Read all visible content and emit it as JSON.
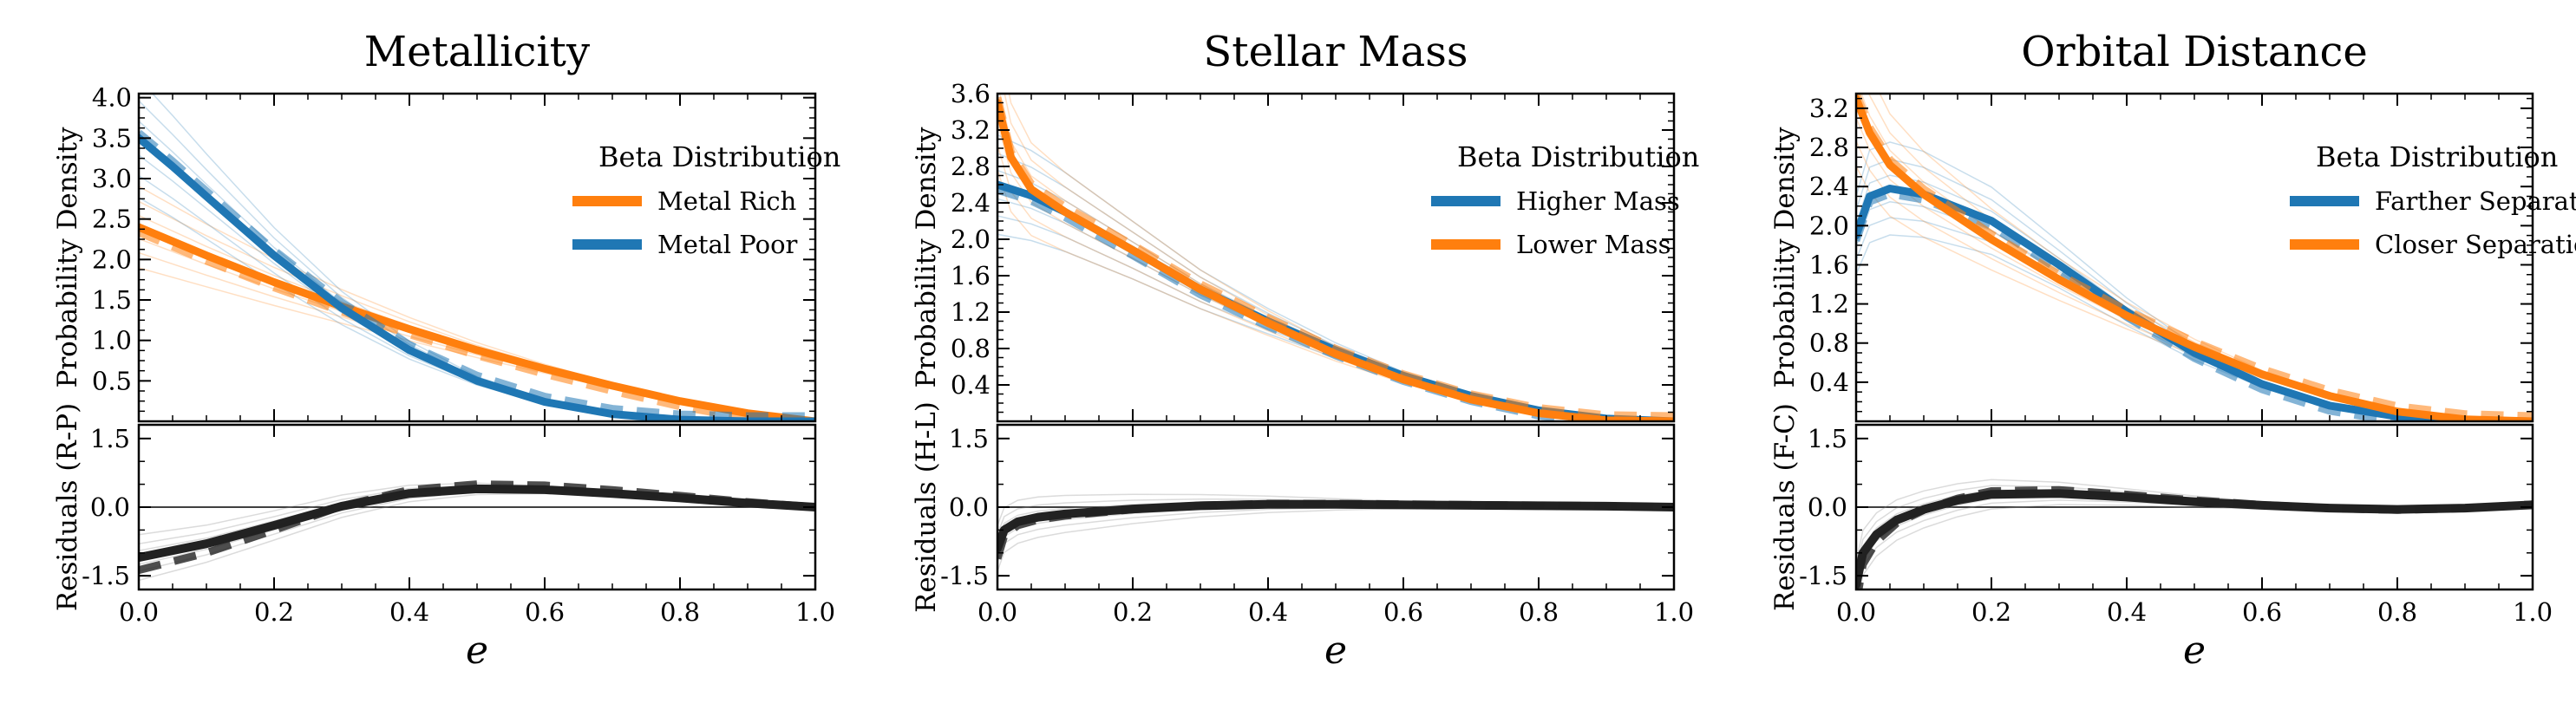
{
  "chart_data": [
    {
      "type": "line",
      "title": "Metallicity",
      "xlabel": "e",
      "top_panel": {
        "ylabel": "Probability Density",
        "ylim": [
          0,
          4.05
        ],
        "yticks": [
          0.5,
          1.0,
          1.5,
          2.0,
          2.5,
          3.0,
          3.5,
          4.0
        ],
        "ytick_labels": [
          "0.5",
          "1.0",
          "1.5",
          "2.0",
          "2.5",
          "3.0",
          "3.5",
          "4.0"
        ],
        "legend_title": "Beta Distribution",
        "legend_position": "top-right",
        "series": [
          {
            "name": "Metal Rich",
            "color": "#ff7f0e",
            "x": [
              0,
              0.1,
              0.2,
              0.3,
              0.4,
              0.5,
              0.6,
              0.7,
              0.8,
              0.9,
              1.0
            ],
            "y": [
              2.4,
              2.05,
              1.72,
              1.42,
              1.14,
              0.88,
              0.65,
              0.44,
              0.25,
              0.1,
              0.0
            ]
          },
          {
            "name": "Metal Poor",
            "color": "#1f77b4",
            "x": [
              0,
              0.05,
              0.1,
              0.2,
              0.3,
              0.4,
              0.5,
              0.6,
              0.7,
              0.8,
              0.9,
              1.0
            ],
            "y": [
              3.5,
              3.15,
              2.78,
              2.05,
              1.4,
              0.88,
              0.5,
              0.24,
              0.09,
              0.02,
              0.0,
              0.0
            ]
          }
        ]
      },
      "residual_panel": {
        "ylabel": "Residuals (R-P)",
        "ylim": [
          -1.8,
          1.8
        ],
        "yticks": [
          -1.5,
          0.0,
          1.5
        ],
        "ytick_labels": [
          "-1.5",
          "0.0",
          "1.5"
        ],
        "series": [
          {
            "name": "",
            "x": [
              0,
              0.05,
              0.1,
              0.2,
              0.3,
              0.4,
              0.5,
              0.6,
              0.7,
              0.8,
              0.9,
              1.0
            ],
            "y": [
              -1.1,
              -0.95,
              -0.8,
              -0.4,
              0.02,
              0.3,
              0.4,
              0.38,
              0.3,
              0.2,
              0.09,
              0.0
            ]
          }
        ]
      },
      "xlim": [
        0,
        1
      ],
      "xticks": [
        0.0,
        0.2,
        0.4,
        0.6,
        0.8,
        1.0
      ],
      "xtick_labels": [
        "0.0",
        "0.2",
        "0.4",
        "0.6",
        "0.8",
        "1.0"
      ]
    },
    {
      "type": "line",
      "title": "Stellar Mass",
      "xlabel": "e",
      "top_panel": {
        "ylabel": "Probability Density",
        "ylim": [
          0,
          3.6
        ],
        "yticks": [
          0.4,
          0.8,
          1.2,
          1.6,
          2.0,
          2.4,
          2.8,
          3.2,
          3.6
        ],
        "ytick_labels": [
          "0.4",
          "0.8",
          "1.2",
          "1.6",
          "2.0",
          "2.4",
          "2.8",
          "3.2",
          "3.6"
        ],
        "legend_title": "Beta Distribution",
        "legend_position": "top-right",
        "series": [
          {
            "name": "Higher Mass",
            "color": "#1f77b4",
            "x": [
              0,
              0.05,
              0.1,
              0.2,
              0.3,
              0.4,
              0.5,
              0.6,
              0.7,
              0.8,
              0.9,
              1.0
            ],
            "y": [
              2.6,
              2.48,
              2.3,
              1.88,
              1.45,
              1.1,
              0.78,
              0.5,
              0.28,
              0.12,
              0.03,
              0.0
            ]
          },
          {
            "name": "Lower Mass",
            "color": "#ff7f0e",
            "x": [
              0,
              0.02,
              0.05,
              0.1,
              0.2,
              0.3,
              0.4,
              0.5,
              0.6,
              0.7,
              0.8,
              0.9,
              1.0
            ],
            "y": [
              3.5,
              2.9,
              2.55,
              2.3,
              1.88,
              1.45,
              1.08,
              0.74,
              0.46,
              0.24,
              0.09,
              0.01,
              0.0
            ]
          }
        ]
      },
      "residual_panel": {
        "ylabel": "Residuals (H-L)",
        "ylim": [
          -1.8,
          1.8
        ],
        "yticks": [
          -1.5,
          0.0,
          1.5
        ],
        "ytick_labels": [
          "-1.5",
          "0.0",
          "1.5"
        ],
        "series": [
          {
            "name": "",
            "x": [
              0,
              0.01,
              0.03,
              0.06,
              0.1,
              0.2,
              0.3,
              0.4,
              0.5,
              0.6,
              0.7,
              0.8,
              0.9,
              1.0
            ],
            "y": [
              -0.9,
              -0.5,
              -0.32,
              -0.22,
              -0.15,
              -0.04,
              0.03,
              0.06,
              0.06,
              0.05,
              0.04,
              0.03,
              0.02,
              0.0
            ]
          }
        ]
      },
      "xlim": [
        0,
        1
      ],
      "xticks": [
        0.0,
        0.2,
        0.4,
        0.6,
        0.8,
        1.0
      ],
      "xtick_labels": [
        "0.0",
        "0.2",
        "0.4",
        "0.6",
        "0.8",
        "1.0"
      ]
    },
    {
      "type": "line",
      "title": "Orbital Distance",
      "xlabel": "e",
      "top_panel": {
        "ylabel": "Probability Density",
        "ylim": [
          0,
          3.35
        ],
        "yticks": [
          0.4,
          0.8,
          1.2,
          1.6,
          2.0,
          2.4,
          2.8,
          3.2
        ],
        "ytick_labels": [
          "0.4",
          "0.8",
          "1.2",
          "1.6",
          "2.0",
          "2.4",
          "2.8",
          "3.2"
        ],
        "legend_title": "Beta Distribution",
        "legend_position": "top-right",
        "series": [
          {
            "name": "Farther Separations",
            "color": "#1f77b4",
            "x": [
              0,
              0.02,
              0.05,
              0.1,
              0.2,
              0.3,
              0.4,
              0.5,
              0.6,
              0.7,
              0.8,
              0.9,
              1.0
            ],
            "y": [
              1.9,
              2.3,
              2.38,
              2.32,
              2.05,
              1.6,
              1.12,
              0.7,
              0.38,
              0.16,
              0.05,
              0.01,
              0.0
            ]
          },
          {
            "name": "Closer Separations",
            "color": "#ff7f0e",
            "x": [
              0,
              0.02,
              0.05,
              0.1,
              0.2,
              0.3,
              0.4,
              0.5,
              0.6,
              0.7,
              0.8,
              0.9,
              1.0
            ],
            "y": [
              3.3,
              2.95,
              2.62,
              2.32,
              1.86,
              1.45,
              1.08,
              0.76,
              0.48,
              0.26,
              0.1,
              0.02,
              0.0
            ]
          }
        ]
      },
      "residual_panel": {
        "ylabel": "Residuals (F-C)",
        "ylim": [
          -1.8,
          1.8
        ],
        "yticks": [
          -1.5,
          0.0,
          1.5
        ],
        "ytick_labels": [
          "-1.5",
          "0.0",
          "1.5"
        ],
        "series": [
          {
            "name": "",
            "x": [
              0,
              0.01,
              0.03,
              0.06,
              0.1,
              0.15,
              0.2,
              0.3,
              0.4,
              0.5,
              0.6,
              0.7,
              0.8,
              0.9,
              1.0
            ],
            "y": [
              -1.7,
              -1.0,
              -0.6,
              -0.28,
              -0.05,
              0.15,
              0.28,
              0.3,
              0.22,
              0.12,
              0.04,
              -0.02,
              -0.05,
              -0.02,
              0.05
            ]
          }
        ]
      },
      "xlim": [
        0,
        1
      ],
      "xticks": [
        0.0,
        0.2,
        0.4,
        0.6,
        0.8,
        1.0
      ],
      "xtick_labels": [
        "0.0",
        "0.2",
        "0.4",
        "0.6",
        "0.8",
        "1.0"
      ]
    }
  ]
}
